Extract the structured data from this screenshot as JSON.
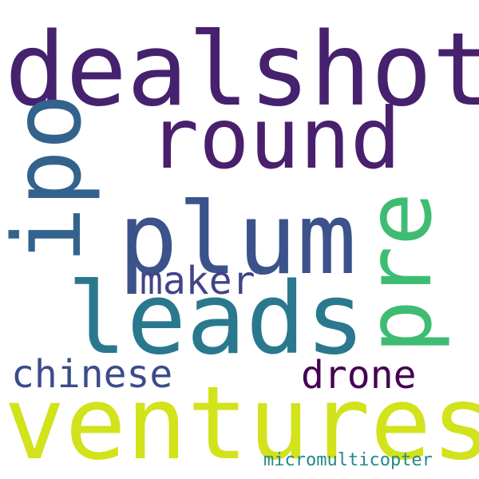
{
  "words": [
    {
      "text": "dealshot",
      "color": "#46216e"
    },
    {
      "text": "round",
      "color": "#4a1f6e"
    },
    {
      "text": "ipo",
      "color": "#33638d"
    },
    {
      "text": "plum",
      "color": "#3b528b"
    },
    {
      "text": "pre",
      "color": "#3fbc73"
    },
    {
      "text": "maker",
      "color": "#414487"
    },
    {
      "text": "leads",
      "color": "#2a788e"
    },
    {
      "text": "chinese",
      "color": "#3b4c89"
    },
    {
      "text": "drone",
      "color": "#440154"
    },
    {
      "text": "ventures",
      "color": "#d2e21b"
    },
    {
      "text": "micromulticopter",
      "color": "#23898e"
    }
  ]
}
